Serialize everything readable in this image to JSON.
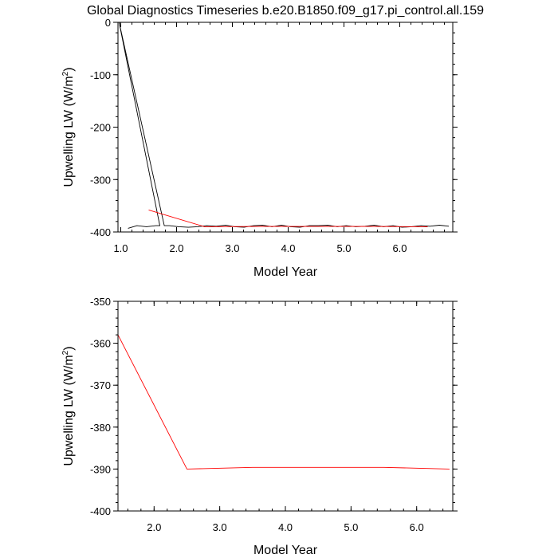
{
  "title": "Global Diagnostics Timeseries b.e20.B1850.f09_g17.pi_control.all.159",
  "chart_data": [
    {
      "type": "line",
      "xlabel": "Model Year",
      "ylabel_main": "Upwelling LW (W/m",
      "ylabel_sup": "2",
      "ylabel_close": ")",
      "xlim": [
        0.95,
        6.95
      ],
      "ylim": [
        -400,
        0
      ],
      "x_ticks": [
        1.0,
        2.0,
        3.0,
        4.0,
        5.0,
        6.0
      ],
      "x_tick_labels": [
        "1.0",
        "2.0",
        "3.0",
        "4.0",
        "5.0",
        "6.0"
      ],
      "y_ticks": [
        0,
        -100,
        -200,
        -300,
        -400
      ],
      "y_tick_labels": [
        "0",
        "-100",
        "-200",
        "-300",
        "-400"
      ],
      "series": [
        {
          "color": "#000000",
          "x": [
            0.97,
            1.78,
            1.78,
            1.87,
            2.04,
            2.21,
            2.38,
            2.54,
            2.71,
            2.88,
            3.04,
            3.21,
            3.38,
            3.54,
            3.71,
            3.88,
            4.04,
            4.21,
            4.38,
            4.54,
            4.71,
            4.88,
            5.04,
            5.21,
            5.38,
            5.54,
            5.71,
            5.88,
            6.04,
            6.21,
            6.38,
            6.54,
            6.71,
            6.88
          ],
          "y": [
            0,
            -388,
            -388,
            -388,
            -390,
            -391,
            -390,
            -388,
            -389,
            -387,
            -390,
            -391,
            -388,
            -387,
            -390,
            -387,
            -390,
            -391,
            -388,
            -388,
            -387,
            -390,
            -388,
            -390,
            -389,
            -387,
            -390,
            -388,
            -391,
            -390,
            -388,
            -389,
            -387,
            -389
          ]
        },
        {
          "color": "#000000",
          "x": [
            0.97,
            1.7,
            1.7,
            1.63,
            1.46,
            1.29,
            1.13
          ],
          "y": [
            0,
            -388,
            -388,
            -388,
            -390,
            -388,
            -393
          ]
        },
        {
          "color": "#ff0000",
          "x": [
            1.5,
            2.5,
            3.5,
            4.5,
            5.5,
            6.5
          ],
          "y": [
            -358,
            -390,
            -389.5,
            -389.5,
            -389.5,
            -390
          ]
        }
      ]
    },
    {
      "type": "line",
      "xlabel": "Model Year",
      "ylabel_main": "Upwelling LW (W/m",
      "ylabel_sup": "2",
      "ylabel_close": ")",
      "xlim": [
        1.45,
        6.55
      ],
      "ylim": [
        -400,
        -350
      ],
      "x_ticks": [
        2.0,
        3.0,
        4.0,
        5.0,
        6.0
      ],
      "x_tick_labels": [
        "2.0",
        "3.0",
        "4.0",
        "5.0",
        "6.0"
      ],
      "y_ticks": [
        -350,
        -360,
        -370,
        -380,
        -390,
        -400
      ],
      "y_tick_labels": [
        "-350",
        "-360",
        "-370",
        "-380",
        "-390",
        "-400"
      ],
      "series": [
        {
          "color": "#ff0000",
          "x": [
            1.45,
            2.5,
            3.5,
            4.5,
            5.5,
            6.5
          ],
          "y": [
            -358,
            -390,
            -389.6,
            -389.6,
            -389.6,
            -390
          ]
        }
      ]
    }
  ]
}
